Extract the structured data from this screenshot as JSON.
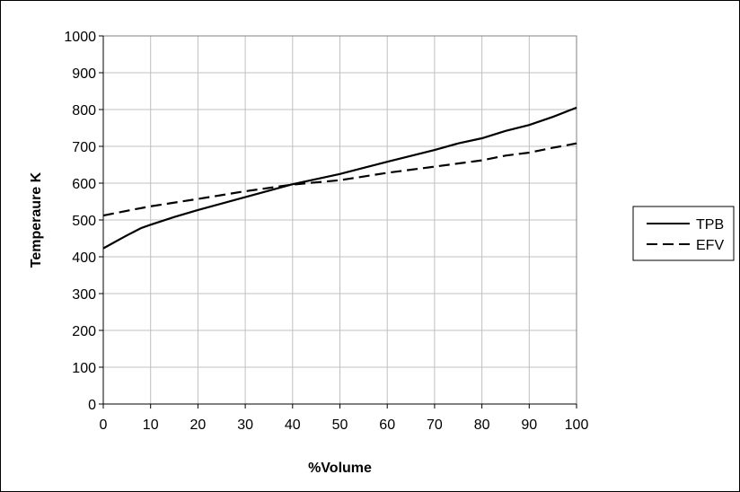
{
  "chart_data": {
    "type": "line",
    "title": "",
    "xlabel": "%Volume",
    "ylabel": "Temperaure K",
    "xlim": [
      0,
      100
    ],
    "ylim": [
      0,
      1000
    ],
    "x_ticks": [
      "0",
      "10",
      "20",
      "30",
      "40",
      "50",
      "60",
      "70",
      "80",
      "90",
      "100"
    ],
    "y_ticks": [
      "0",
      "100",
      "200",
      "300",
      "400",
      "500",
      "600",
      "700",
      "800",
      "900",
      "1000"
    ],
    "grid": true,
    "legend_position": "right",
    "series": [
      {
        "name": "TPB",
        "style": "solid",
        "color": "#000000",
        "x": [
          0,
          5,
          8,
          10,
          15,
          20,
          30,
          40,
          50,
          60,
          70,
          75,
          80,
          85,
          90,
          95,
          100
        ],
        "y": [
          423,
          458,
          478,
          487,
          508,
          527,
          562,
          597,
          625,
          658,
          690,
          708,
          722,
          742,
          758,
          780,
          805
        ]
      },
      {
        "name": "EFV",
        "style": "dashed",
        "color": "#000000",
        "x": [
          0,
          5,
          10,
          20,
          30,
          40,
          50,
          60,
          70,
          80,
          85,
          90,
          95,
          100
        ],
        "y": [
          512,
          525,
          537,
          557,
          578,
          596,
          608,
          628,
          645,
          662,
          675,
          683,
          696,
          708
        ]
      }
    ]
  }
}
